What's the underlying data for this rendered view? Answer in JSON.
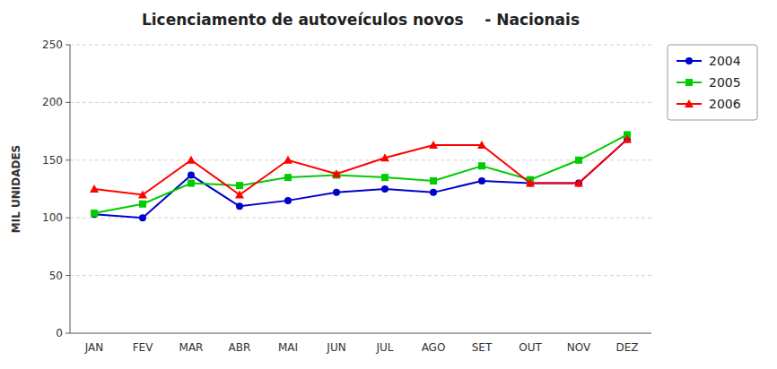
{
  "chart_data": {
    "type": "line",
    "title": "Licenciamento de autoveículos novos    - Nacionais",
    "y_label": "MIL UNIDADES",
    "categories": [
      "JAN",
      "FEV",
      "MAR",
      "ABR",
      "MAI",
      "JUN",
      "JUL",
      "AGO",
      "SET",
      "OUT",
      "NOV",
      "DEZ"
    ],
    "series": [
      {
        "name": "2004",
        "color": "#0000CC",
        "marker": "circle",
        "values": [
          103,
          100,
          137,
          110,
          115,
          122,
          125,
          122,
          132,
          130,
          130,
          168
        ]
      },
      {
        "name": "2005",
        "color": "#00CC00",
        "marker": "square",
        "values": [
          104,
          112,
          130,
          128,
          135,
          137,
          135,
          132,
          145,
          133,
          150,
          172
        ]
      },
      {
        "name": "2006",
        "color": "#FF0000",
        "marker": "triangle",
        "values": [
          125,
          120,
          150,
          120,
          150,
          138,
          152,
          163,
          163,
          130,
          130,
          168
        ]
      }
    ],
    "ylim": [
      0,
      250
    ],
    "yticks": [
      0,
      50,
      100,
      150,
      200,
      250
    ],
    "grid": true,
    "legend": "right"
  }
}
